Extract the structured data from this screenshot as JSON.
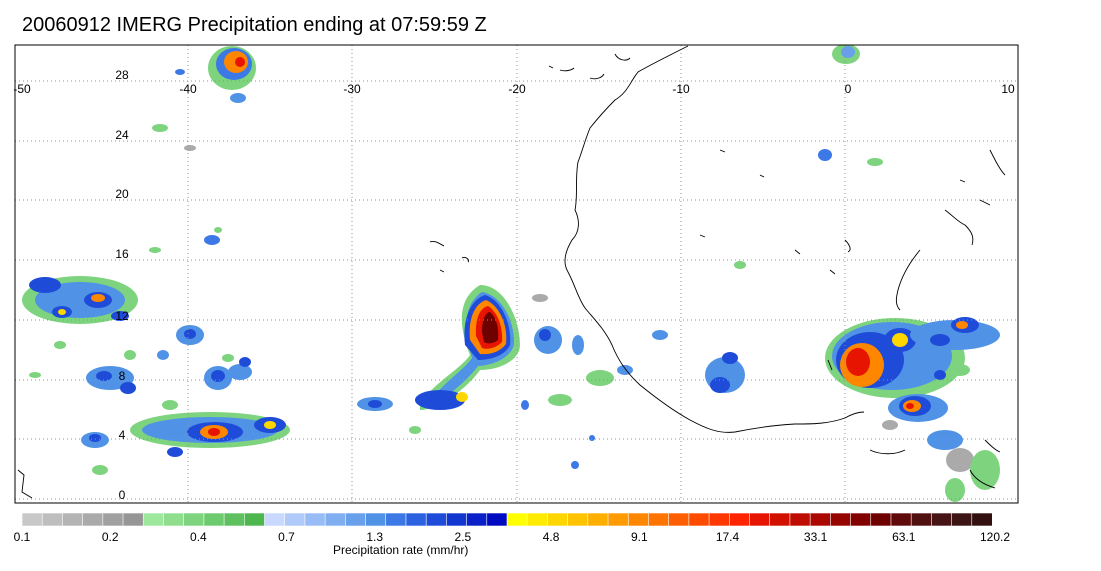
{
  "title": "20060912 IMERG Precipitation ending at 07:59:59 Z",
  "lon_ticks": [
    "-50",
    "-40",
    "-30",
    "-20",
    "-10",
    "0",
    "10"
  ],
  "lat_ticks": [
    "28",
    "24",
    "20",
    "16",
    "12",
    "8",
    "4",
    "0"
  ],
  "map": {
    "lon_range": [
      -50,
      10
    ],
    "lat_range": [
      -0.5,
      30
    ],
    "grid": "dotted"
  },
  "colorbar": {
    "title": "Precipitation rate (mm/hr)",
    "labels": [
      "0.1",
      "0.2",
      "0.4",
      "0.7",
      "1.3",
      "2.5",
      "4.8",
      "9.1",
      "17.4",
      "33.1",
      "63.1",
      "120.2"
    ],
    "colors": [
      "#c8c8c8",
      "#bebebe",
      "#b4b4b4",
      "#aaaaaa",
      "#a0a0a0",
      "#969696",
      "#9ee89e",
      "#8ede8e",
      "#7ed47e",
      "#6eca6e",
      "#5ec05e",
      "#4eb64e",
      "#c8d8ff",
      "#b0cafa",
      "#98bcf5",
      "#80aef0",
      "#68a0eb",
      "#5092e6",
      "#3c78e6",
      "#2c62e0",
      "#1e4cd8",
      "#1236d0",
      "#0a20c8",
      "#000ac0",
      "#ffff00",
      "#ffeb00",
      "#ffd700",
      "#ffc300",
      "#ffaf00",
      "#ff9b00",
      "#ff8700",
      "#ff7300",
      "#ff5f00",
      "#ff4b00",
      "#ff3700",
      "#ff2300",
      "#e61400",
      "#d21000",
      "#be0c00",
      "#aa0800",
      "#960400",
      "#820000",
      "#6e0000",
      "#5f0a0a",
      "#501010",
      "#461414",
      "#3c1414",
      "#321010"
    ]
  },
  "precip_legend_colors": {
    "gray": "#aaaaaa",
    "green": "#7ed47e",
    "lightblue": "#9cc0f5",
    "blue": "#3c78e6",
    "darkblue": "#0a20c8",
    "yellow": "#ffd700",
    "orange": "#ff8700",
    "red": "#e61400",
    "darkred": "#6e0000"
  }
}
